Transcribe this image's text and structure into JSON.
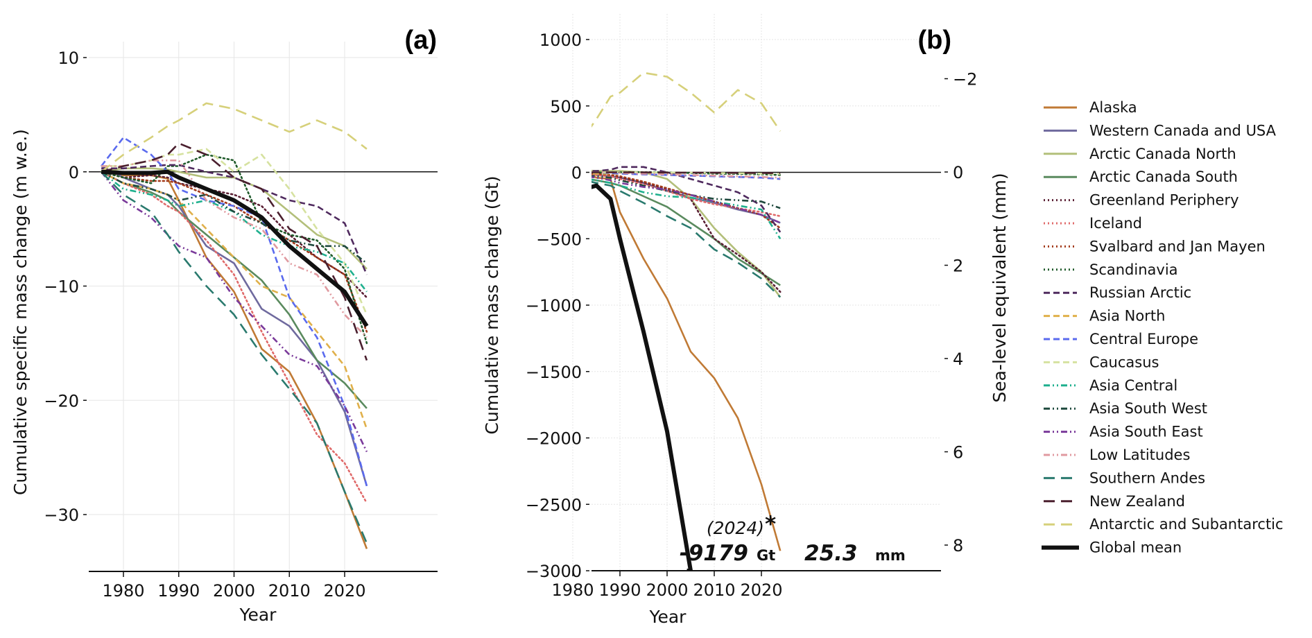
{
  "chart_data": [
    {
      "type": "line",
      "panel_label": "(a)",
      "title": "",
      "xlabel": "Year",
      "ylabel": "Cumulative specific mass change (m w.e.)",
      "xlim": [
        1975,
        2025
      ],
      "ylim": [
        -35,
        12
      ],
      "xticks": [
        1980,
        1990,
        2000,
        2010,
        2020
      ],
      "yticks": [
        10,
        0,
        -10,
        -20,
        -30
      ],
      "ytick_labels": [
        "10",
        "0",
        "−10",
        "−20",
        "−30"
      ],
      "grid": true,
      "zero_line": true,
      "x": [
        1976,
        1980,
        1985,
        1988,
        1990,
        1995,
        2000,
        2005,
        2010,
        2015,
        2020,
        2024
      ],
      "series": [
        {
          "name": "Alaska",
          "values": [
            0,
            -0.3,
            -0.3,
            -0.6,
            -2.5,
            -7.5,
            -10.5,
            -15.5,
            -17.5,
            -22,
            -28,
            -33
          ]
        },
        {
          "name": "Western Canada and USA",
          "values": [
            0.5,
            -0.5,
            -1.5,
            -2.0,
            -3.0,
            -6.5,
            -8.0,
            -12.0,
            -13.5,
            -16.5,
            -21,
            -27.5
          ]
        },
        {
          "name": "Arctic Canada North",
          "values": [
            0,
            0.3,
            0.3,
            0.2,
            0,
            -0.5,
            -0.5,
            -1.5,
            -3.5,
            -5.5,
            -6.5,
            -8.5
          ]
        },
        {
          "name": "Arctic Canada South",
          "values": [
            0,
            -1.0,
            -1.8,
            -2.5,
            -3.5,
            -5.5,
            -7.5,
            -9.5,
            -12.5,
            -16.5,
            -18.5,
            -20.7
          ]
        },
        {
          "name": "Greenland Periphery",
          "values": [
            0,
            -0.5,
            -0.3,
            -0.5,
            -1.0,
            -1.5,
            -2.0,
            -3.0,
            -5.5,
            -7.5,
            -9.0,
            -11.0
          ]
        },
        {
          "name": "Iceland",
          "values": [
            0,
            -1.0,
            -2.0,
            -3.0,
            -3.5,
            -6.0,
            -9.0,
            -14.0,
            -18.5,
            -23.0,
            -25.5,
            -29.0
          ]
        },
        {
          "name": "Svalbard and Jan Mayen",
          "values": [
            0,
            -0.5,
            -0.8,
            -0.8,
            -1.0,
            -2.0,
            -3.0,
            -4.5,
            -6.0,
            -7.5,
            -9.0,
            -14.0
          ]
        },
        {
          "name": "Scandinavia",
          "values": [
            0,
            -0.5,
            -1.0,
            0.5,
            0.5,
            1.5,
            1.0,
            -4.5,
            -5.5,
            -6.0,
            -8.5,
            -15.0
          ]
        },
        {
          "name": "Russian Arctic",
          "values": [
            0.3,
            0.3,
            0.5,
            0.6,
            0.6,
            0,
            -0.5,
            -1.5,
            -2.5,
            -3.0,
            -4.5,
            -9.0
          ]
        },
        {
          "name": "Asia North",
          "values": [
            0,
            -1.0,
            -1.5,
            -2.0,
            -2.5,
            -5.0,
            -7.5,
            -10.0,
            -11.0,
            -14.0,
            -17.0,
            -22.5
          ]
        },
        {
          "name": "Central Europe",
          "values": [
            0.5,
            3.0,
            1.5,
            0,
            -1.5,
            -2.5,
            -3.0,
            -4.0,
            -11.0,
            -14.5,
            -20.5,
            -27.5
          ]
        },
        {
          "name": "Caucasus",
          "values": [
            0.5,
            0.5,
            1.0,
            1.5,
            1.5,
            2.0,
            0,
            1.5,
            -1.5,
            -5.0,
            -8.0,
            -12.5
          ]
        },
        {
          "name": "Asia Central",
          "values": [
            0,
            -1.5,
            -2.0,
            -2.5,
            -3.0,
            -2.5,
            -3.5,
            -5.5,
            -6.5,
            -7.0,
            -8.0,
            -10.5
          ]
        },
        {
          "name": "Asia South West",
          "values": [
            0,
            -1.0,
            -1.5,
            -2.0,
            -2.5,
            -2.0,
            -3.5,
            -4.5,
            -6.0,
            -6.5,
            -6.5,
            -8.0
          ]
        },
        {
          "name": "Asia South East",
          "values": [
            0,
            -2.5,
            -4.0,
            -5.5,
            -6.5,
            -7.5,
            -11.0,
            -13.5,
            -16.0,
            -17.0,
            -20.5,
            -24.5
          ]
        },
        {
          "name": "Low Latitudes",
          "values": [
            0.5,
            0.5,
            1.0,
            1.0,
            1.0,
            -2.5,
            -4.0,
            -5.0,
            -8.0,
            -9.0,
            -12.5,
            -14.5
          ]
        },
        {
          "name": "Southern Andes",
          "values": [
            0,
            -2.0,
            -3.5,
            -5.5,
            -7.0,
            -10.0,
            -12.5,
            -16.0,
            -19.0,
            -22.0,
            -28.0,
            -32.5
          ]
        },
        {
          "name": "New Zealand",
          "values": [
            0,
            0.5,
            1.0,
            1.5,
            2.5,
            1.5,
            -0.5,
            -1.5,
            -5.0,
            -6.5,
            -11.0,
            -16.5
          ]
        },
        {
          "name": "Antarctic and Subantarctic",
          "values": [
            0,
            1.5,
            3.0,
            4.0,
            4.5,
            6.0,
            5.5,
            4.5,
            3.5,
            4.5,
            3.5,
            2.0
          ]
        },
        {
          "name": "Global mean",
          "values": [
            0,
            -0.1,
            -0.1,
            0,
            -0.5,
            -1.5,
            -2.5,
            -4.0,
            -6.5,
            -8.5,
            -10.5,
            -13.5
          ]
        }
      ]
    },
    {
      "type": "line",
      "panel_label": "(b)",
      "title": "",
      "xlabel": "Year",
      "ylabel": "Cumulative mass change (Gt)",
      "ylabel_right": "Sea-level equivalent (mm)",
      "xlim": [
        1975,
        2025
      ],
      "ylim": [
        -3000,
        1180
      ],
      "xticks": [
        1980,
        1990,
        2000,
        2010,
        2020
      ],
      "yticks": [
        1000,
        500,
        0,
        -500,
        -1000,
        -1500,
        -2000,
        -2500,
        -3000
      ],
      "ytick_labels": [
        "1000",
        "500",
        "0",
        "−500",
        "−1000",
        "−1500",
        "−2000",
        "−2500",
        "−3000"
      ],
      "yticks_right": [
        -2,
        0,
        2,
        4,
        6,
        8
      ],
      "ytick_right_labels": [
        "−2",
        "0",
        "2",
        "4",
        "6",
        "8"
      ],
      "grid": true,
      "zero_line": true,
      "annotation": {
        "year": "(2024)",
        "asterisk": "*",
        "mass_value": "-9179",
        "mass_unit": "Gt",
        "sea_level_value": "25.3",
        "sea_level_unit": "mm"
      },
      "x": [
        1976,
        1980,
        1985,
        1988,
        1990,
        1995,
        2000,
        2005,
        2010,
        2015,
        2020,
        2024
      ],
      "series": [
        {
          "name": "Alaska",
          "values": [
            0,
            40,
            -40,
            -50,
            -300,
            -650,
            -950,
            -1350,
            -1550,
            -1850,
            -2350,
            -2850
          ]
        },
        {
          "name": "Western Canada and USA",
          "values": [
            0,
            -10,
            -20,
            -30,
            -40,
            -80,
            -140,
            -190,
            -230,
            -280,
            -320,
            -380
          ]
        },
        {
          "name": "Arctic Canada North",
          "values": [
            0,
            20,
            10,
            10,
            10,
            0,
            -50,
            -200,
            -420,
            -600,
            -750,
            -940
          ]
        },
        {
          "name": "Arctic Canada South",
          "values": [
            0,
            -30,
            -60,
            -80,
            -100,
            -180,
            -260,
            -380,
            -500,
            -650,
            -760,
            -850
          ]
        },
        {
          "name": "Greenland Periphery",
          "values": [
            0,
            -10,
            -20,
            -30,
            -40,
            -80,
            -130,
            -200,
            -500,
            -620,
            -750,
            -900
          ]
        },
        {
          "name": "Iceland",
          "values": [
            0,
            -10,
            -20,
            -30,
            -50,
            -90,
            -140,
            -200,
            -240,
            -270,
            -300,
            -330
          ]
        },
        {
          "name": "Svalbard and Jan Mayen",
          "values": [
            0,
            -5,
            -10,
            -20,
            -30,
            -70,
            -120,
            -170,
            -220,
            -270,
            -320,
            -420
          ]
        },
        {
          "name": "Scandinavia",
          "values": [
            0,
            0,
            -2,
            0,
            0,
            2,
            0,
            -5,
            -10,
            -12,
            -15,
            -20
          ]
        },
        {
          "name": "Russian Arctic",
          "values": [
            0,
            10,
            10,
            20,
            40,
            40,
            0,
            -50,
            -100,
            -150,
            -250,
            -450
          ]
        },
        {
          "name": "Asia North",
          "values": [
            0,
            -5,
            -10,
            -10,
            -10,
            -15,
            -20,
            -25,
            -30,
            -35,
            -40,
            -50
          ]
        },
        {
          "name": "Central Europe",
          "values": [
            0,
            5,
            0,
            -5,
            -10,
            -15,
            -20,
            -25,
            -30,
            -35,
            -40,
            -50
          ]
        },
        {
          "name": "Caucasus",
          "values": [
            0,
            0,
            0,
            0,
            0,
            0,
            -2,
            -2,
            -5,
            -7,
            -10,
            -12
          ]
        },
        {
          "name": "Asia Central",
          "values": [
            0,
            -40,
            -60,
            -80,
            -100,
            -150,
            -180,
            -190,
            -220,
            -250,
            -280,
            -500
          ]
        },
        {
          "name": "Asia South West",
          "values": [
            0,
            -20,
            -30,
            -40,
            -60,
            -100,
            -140,
            -170,
            -200,
            -210,
            -220,
            -270
          ]
        },
        {
          "name": "Asia South East",
          "values": [
            0,
            -20,
            -40,
            -60,
            -80,
            -110,
            -130,
            -170,
            -220,
            -270,
            -320,
            -380
          ]
        },
        {
          "name": "Low Latitudes",
          "values": [
            0,
            0,
            0,
            0,
            -5,
            -10,
            -15,
            -20,
            -25,
            -30,
            -35,
            -40
          ]
        },
        {
          "name": "Southern Andes",
          "values": [
            0,
            -40,
            -80,
            -100,
            -140,
            -230,
            -330,
            -420,
            -580,
            -680,
            -800,
            -940
          ]
        },
        {
          "name": "New Zealand",
          "values": [
            0,
            0,
            0,
            0,
            0,
            0,
            -2,
            -2,
            -3,
            -4,
            -5,
            -7
          ]
        },
        {
          "name": "Antarctic and Subantarctic",
          "values": [
            0,
            150,
            400,
            570,
            600,
            750,
            720,
            600,
            450,
            620,
            520,
            310
          ]
        },
        {
          "name": "Global mean",
          "values": [
            0,
            -150,
            -100,
            -200,
            -500,
            -1200,
            -1950,
            -3000,
            null,
            null,
            null,
            null
          ]
        }
      ]
    }
  ],
  "legend": {
    "placement": "right",
    "items": [
      {
        "name": "Alaska",
        "color": "#c07a35",
        "style": "solid"
      },
      {
        "name": "Western Canada and USA",
        "color": "#6f6a9e",
        "style": "solid"
      },
      {
        "name": "Arctic Canada North",
        "color": "#b3bf7a",
        "style": "solid"
      },
      {
        "name": "Arctic Canada South",
        "color": "#5a8a5e",
        "style": "solid"
      },
      {
        "name": "Greenland Periphery",
        "color": "#5a1f33",
        "style": "dotted"
      },
      {
        "name": "Iceland",
        "color": "#e06a6a",
        "style": "dotted"
      },
      {
        "name": "Svalbard and Jan Mayen",
        "color": "#a33a1a",
        "style": "dotted"
      },
      {
        "name": "Scandinavia",
        "color": "#1f5a2a",
        "style": "dotted"
      },
      {
        "name": "Russian Arctic",
        "color": "#4f2a5e",
        "style": "dashed"
      },
      {
        "name": "Asia North",
        "color": "#e0b04a",
        "style": "dashed"
      },
      {
        "name": "Central Europe",
        "color": "#5a6aee",
        "style": "dashed"
      },
      {
        "name": "Caucasus",
        "color": "#d6e2a0",
        "style": "dashed"
      },
      {
        "name": "Asia Central",
        "color": "#1fb08e",
        "style": "dashdotdot"
      },
      {
        "name": "Asia South West",
        "color": "#1f4a3e",
        "style": "dashdotdot"
      },
      {
        "name": "Asia South East",
        "color": "#7a3a9a",
        "style": "dashdotdot"
      },
      {
        "name": "Low Latitudes",
        "color": "#e09aa0",
        "style": "dashdotdot"
      },
      {
        "name": "Southern Andes",
        "color": "#2a7a6e",
        "style": "longdash"
      },
      {
        "name": "New Zealand",
        "color": "#4a1f2e",
        "style": "longdash"
      },
      {
        "name": "Antarctic and Subantarctic",
        "color": "#d6d07a",
        "style": "longdash"
      },
      {
        "name": "Global mean",
        "color": "#111111",
        "style": "thick"
      }
    ]
  }
}
